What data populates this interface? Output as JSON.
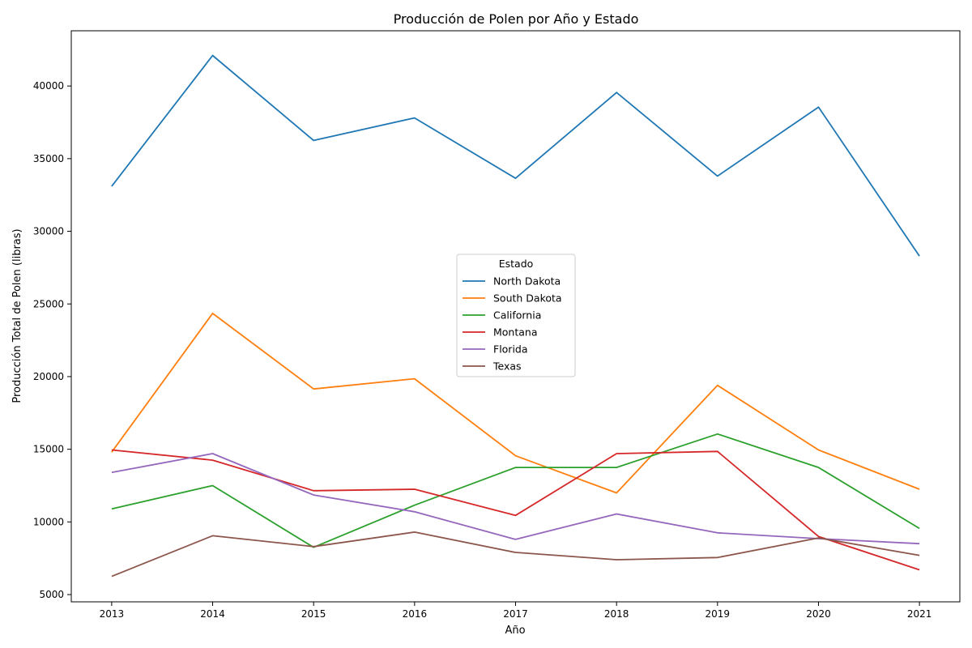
{
  "chart_data": {
    "type": "line",
    "title": "Producción de Polen por Año y Estado",
    "xlabel": "Año",
    "ylabel": "Producción Total de Polen (libras)",
    "x": [
      2013,
      2014,
      2015,
      2016,
      2017,
      2018,
      2019,
      2020,
      2021
    ],
    "xlim": [
      2012.6,
      2021.4
    ],
    "ylim": [
      4500,
      43800
    ],
    "yticks": [
      5000,
      10000,
      15000,
      20000,
      25000,
      30000,
      35000,
      40000
    ],
    "grid": false,
    "legend": {
      "title": "Estado",
      "placement": "center"
    },
    "series": [
      {
        "name": "North Dakota",
        "color": "#1f77b4",
        "values": [
          33100,
          42100,
          36250,
          37800,
          33650,
          39550,
          33800,
          38550,
          28300
        ]
      },
      {
        "name": "South Dakota",
        "color": "#ff7f0e",
        "values": [
          14800,
          24350,
          19150,
          19850,
          14550,
          12000,
          19400,
          14950,
          12250
        ]
      },
      {
        "name": "California",
        "color": "#2ca02c",
        "values": [
          10900,
          12500,
          8250,
          11150,
          13750,
          13750,
          16050,
          13750,
          9550
        ]
      },
      {
        "name": "Montana",
        "color": "#d62728",
        "values": [
          14950,
          14250,
          12150,
          12250,
          10450,
          14700,
          14850,
          9000,
          6700
        ]
      },
      {
        "name": "Florida",
        "color": "#9467bd",
        "values": [
          13400,
          14700,
          11850,
          10700,
          8800,
          10550,
          9250,
          8850,
          8500
        ]
      },
      {
        "name": "Texas",
        "color": "#8c564b",
        "values": [
          6250,
          9050,
          8300,
          9300,
          7900,
          7400,
          7550,
          8900,
          7700
        ]
      }
    ]
  }
}
